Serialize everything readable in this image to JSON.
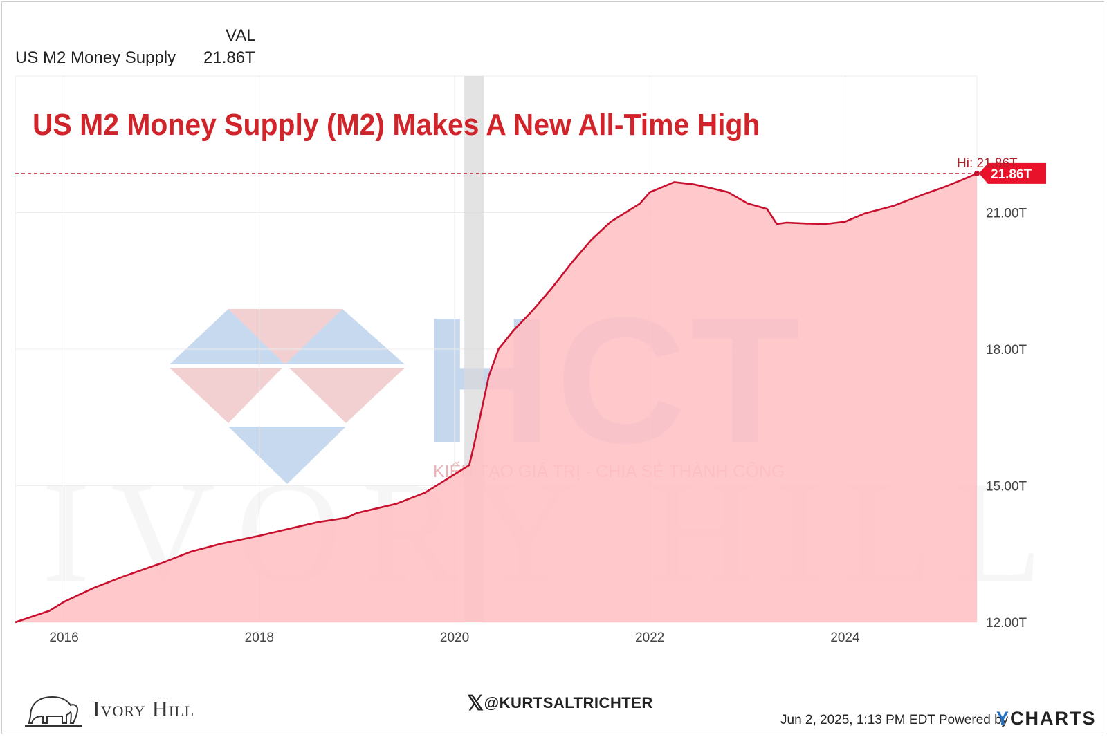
{
  "legend": {
    "column_header": "VAL",
    "series_name": "US M2 Money Supply",
    "series_value": "21.86T"
  },
  "colors": {
    "line": "#c8102e",
    "fill": "#ffc0c4",
    "title": "#d1232a",
    "recession_band": "#d9d9d9",
    "ycharts_y": "#1f72c9"
  },
  "chart_data": {
    "type": "area",
    "title": "US M2 Money Supply (M2) Makes A New All-Time High",
    "xlabel": "",
    "ylabel": "",
    "x_ticks": [
      "2016",
      "2018",
      "2020",
      "2022",
      "2024"
    ],
    "y_ticks": [
      "12.00T",
      "15.00T",
      "18.00T",
      "21.00T"
    ],
    "xlim": [
      2015.5,
      2025.35
    ],
    "ylim": [
      12.0,
      24.0
    ],
    "high_label": "Hi: 21.86T",
    "last_value_label": "21.86T",
    "recession_shading": [
      2020.1,
      2020.3
    ],
    "grid": true,
    "series": [
      {
        "name": "US M2 Money Supply",
        "x": [
          2015.5,
          2015.85,
          2016.0,
          2016.3,
          2016.6,
          2017.0,
          2017.3,
          2017.6,
          2018.0,
          2018.3,
          2018.6,
          2018.9,
          2019.0,
          2019.4,
          2019.7,
          2020.0,
          2020.15,
          2020.2,
          2020.25,
          2020.35,
          2020.45,
          2020.6,
          2020.8,
          2021.0,
          2021.2,
          2021.4,
          2021.6,
          2021.9,
          2022.0,
          2022.15,
          2022.25,
          2022.45,
          2022.6,
          2022.8,
          2023.0,
          2023.2,
          2023.3,
          2023.4,
          2023.6,
          2023.8,
          2024.0,
          2024.2,
          2024.5,
          2024.8,
          2025.0,
          2025.2,
          2025.35
        ],
        "values": [
          12.0,
          12.25,
          12.45,
          12.75,
          13.0,
          13.3,
          13.55,
          13.72,
          13.9,
          14.05,
          14.2,
          14.3,
          14.4,
          14.6,
          14.85,
          15.25,
          15.45,
          15.9,
          16.4,
          17.4,
          18.0,
          18.4,
          18.85,
          19.35,
          19.9,
          20.4,
          20.8,
          21.2,
          21.45,
          21.58,
          21.67,
          21.62,
          21.55,
          21.45,
          21.2,
          21.08,
          20.75,
          20.78,
          20.76,
          20.75,
          20.8,
          20.98,
          21.15,
          21.4,
          21.55,
          21.72,
          21.86
        ]
      }
    ]
  },
  "watermarks": {
    "hct_letters": "HCT",
    "hct_tagline": "KIẾN TẠO GIÁ TRỊ - CHIA SẺ THÀNH CÔNG",
    "ivory_hill": "IVORY HILL"
  },
  "footer": {
    "handle": "@KURTSALTRICHTER",
    "brand": "Ivory Hill",
    "timestamp_powered": "Jun 2, 2025, 1:13 PM EDT Powered by",
    "ycharts_y": "Y",
    "ycharts_rest": "CHARTS"
  }
}
